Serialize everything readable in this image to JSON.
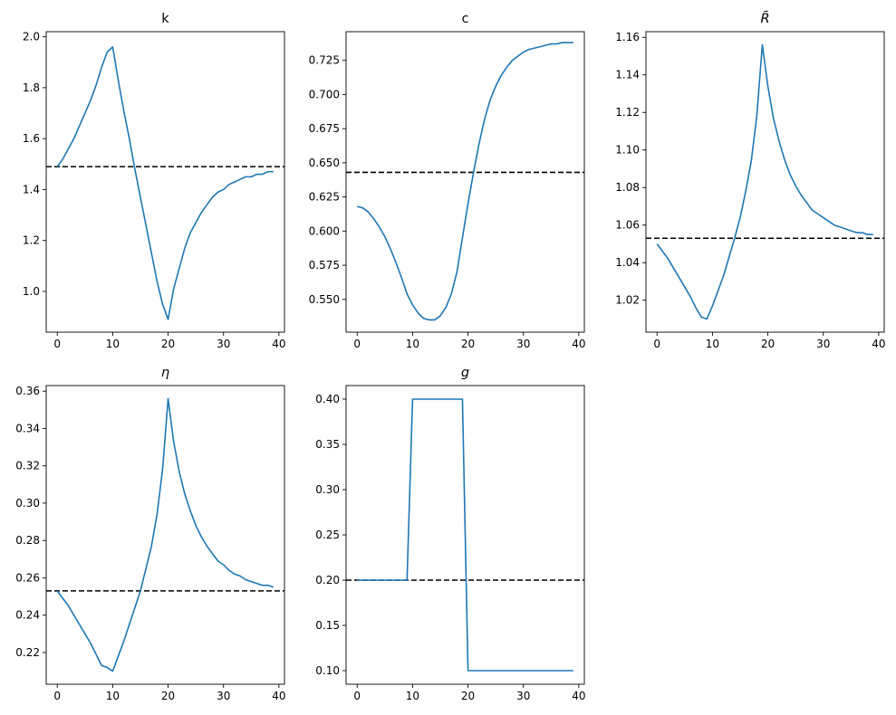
{
  "colors": {
    "series": "#1f77b4",
    "steady_state": "#000000",
    "axes": "#000000",
    "background": "#ffffff"
  },
  "chart_data": [
    {
      "type": "line",
      "title": "k",
      "xlim": [
        -2,
        41
      ],
      "ylim": [
        0.84,
        2.02
      ],
      "xticks": [
        0,
        10,
        20,
        30,
        40
      ],
      "yticks": [
        1.0,
        1.2,
        1.4,
        1.6,
        1.8,
        2.0
      ],
      "xtick_labels": [
        "0",
        "10",
        "20",
        "30",
        "40"
      ],
      "ytick_labels": [
        "1.0",
        "1.2",
        "1.4",
        "1.6",
        "1.8",
        "2.0"
      ],
      "steady_state": 1.49,
      "x": [
        0,
        1,
        2,
        3,
        4,
        5,
        6,
        7,
        8,
        9,
        10,
        11,
        12,
        13,
        14,
        15,
        16,
        17,
        18,
        19,
        20,
        21,
        22,
        23,
        24,
        25,
        26,
        27,
        28,
        29,
        30,
        31,
        32,
        33,
        34,
        35,
        36,
        37,
        38,
        39
      ],
      "values": [
        1.49,
        1.52,
        1.56,
        1.6,
        1.65,
        1.7,
        1.75,
        1.81,
        1.88,
        1.94,
        1.96,
        1.83,
        1.71,
        1.6,
        1.48,
        1.37,
        1.26,
        1.15,
        1.04,
        0.95,
        0.89,
        1.01,
        1.09,
        1.17,
        1.23,
        1.27,
        1.31,
        1.34,
        1.37,
        1.39,
        1.4,
        1.42,
        1.43,
        1.44,
        1.45,
        1.45,
        1.46,
        1.46,
        1.47,
        1.47
      ]
    },
    {
      "type": "line",
      "title": "c",
      "xlim": [
        -2,
        41
      ],
      "ylim": [
        0.526,
        0.746
      ],
      "xticks": [
        0,
        10,
        20,
        30,
        40
      ],
      "yticks": [
        0.55,
        0.575,
        0.6,
        0.625,
        0.65,
        0.675,
        0.7,
        0.725
      ],
      "xtick_labels": [
        "0",
        "10",
        "20",
        "30",
        "40"
      ],
      "ytick_labels": [
        "0.550",
        "0.575",
        "0.600",
        "0.625",
        "0.650",
        "0.675",
        "0.700",
        "0.725"
      ],
      "steady_state": 0.643,
      "x": [
        0,
        1,
        2,
        3,
        4,
        5,
        6,
        7,
        8,
        9,
        10,
        11,
        12,
        13,
        14,
        15,
        16,
        17,
        18,
        19,
        20,
        21,
        22,
        23,
        24,
        25,
        26,
        27,
        28,
        29,
        30,
        31,
        32,
        33,
        34,
        35,
        36,
        37,
        38,
        39
      ],
      "values": [
        0.618,
        0.617,
        0.614,
        0.609,
        0.603,
        0.596,
        0.587,
        0.577,
        0.566,
        0.554,
        0.546,
        0.54,
        0.536,
        0.535,
        0.535,
        0.538,
        0.544,
        0.554,
        0.57,
        0.595,
        0.62,
        0.643,
        0.664,
        0.682,
        0.696,
        0.706,
        0.714,
        0.72,
        0.725,
        0.728,
        0.731,
        0.733,
        0.734,
        0.735,
        0.736,
        0.737,
        0.737,
        0.738,
        0.738,
        0.738
      ]
    },
    {
      "type": "line",
      "title": "R̄",
      "xlim": [
        -2,
        41
      ],
      "ylim": [
        1.003,
        1.163
      ],
      "xticks": [
        0,
        10,
        20,
        30,
        40
      ],
      "yticks": [
        1.02,
        1.04,
        1.06,
        1.08,
        1.1,
        1.12,
        1.14,
        1.16
      ],
      "xtick_labels": [
        "0",
        "10",
        "20",
        "30",
        "40"
      ],
      "ytick_labels": [
        "1.02",
        "1.04",
        "1.06",
        "1.08",
        "1.10",
        "1.12",
        "1.14",
        "1.16"
      ],
      "steady_state": 1.053,
      "x": [
        0,
        1,
        2,
        3,
        4,
        5,
        6,
        7,
        8,
        9,
        10,
        11,
        12,
        13,
        14,
        15,
        16,
        17,
        18,
        19,
        20,
        21,
        22,
        23,
        24,
        25,
        26,
        27,
        28,
        29,
        30,
        31,
        32,
        33,
        34,
        35,
        36,
        37,
        38,
        39
      ],
      "values": [
        1.05,
        1.046,
        1.042,
        1.037,
        1.032,
        1.027,
        1.022,
        1.016,
        1.011,
        1.01,
        1.017,
        1.025,
        1.033,
        1.043,
        1.053,
        1.064,
        1.078,
        1.094,
        1.118,
        1.156,
        1.134,
        1.117,
        1.105,
        1.095,
        1.087,
        1.081,
        1.076,
        1.072,
        1.068,
        1.066,
        1.064,
        1.062,
        1.06,
        1.059,
        1.058,
        1.057,
        1.056,
        1.056,
        1.055,
        1.055
      ]
    },
    {
      "type": "line",
      "title": "η",
      "xlim": [
        -2,
        41
      ],
      "ylim": [
        0.203,
        0.363
      ],
      "xticks": [
        0,
        10,
        20,
        30,
        40
      ],
      "yticks": [
        0.22,
        0.24,
        0.26,
        0.28,
        0.3,
        0.32,
        0.34,
        0.36
      ],
      "xtick_labels": [
        "0",
        "10",
        "20",
        "30",
        "40"
      ],
      "ytick_labels": [
        "0.22",
        "0.24",
        "0.26",
        "0.28",
        "0.30",
        "0.32",
        "0.34",
        "0.36"
      ],
      "steady_state": 0.253,
      "x": [
        0,
        1,
        2,
        3,
        4,
        5,
        6,
        7,
        8,
        9,
        10,
        11,
        12,
        13,
        14,
        15,
        16,
        17,
        18,
        19,
        20,
        21,
        22,
        23,
        24,
        25,
        26,
        27,
        28,
        29,
        30,
        31,
        32,
        33,
        34,
        35,
        36,
        37,
        38,
        39
      ],
      "values": [
        0.253,
        0.249,
        0.245,
        0.24,
        0.235,
        0.23,
        0.225,
        0.219,
        0.213,
        0.212,
        0.21,
        0.218,
        0.226,
        0.235,
        0.244,
        0.253,
        0.265,
        0.277,
        0.294,
        0.318,
        0.356,
        0.333,
        0.317,
        0.305,
        0.296,
        0.288,
        0.282,
        0.277,
        0.273,
        0.269,
        0.267,
        0.264,
        0.262,
        0.261,
        0.259,
        0.258,
        0.257,
        0.256,
        0.256,
        0.255
      ]
    },
    {
      "type": "line",
      "title": "g",
      "xlim": [
        -2,
        41
      ],
      "ylim": [
        0.085,
        0.415
      ],
      "xticks": [
        0,
        10,
        20,
        30,
        40
      ],
      "yticks": [
        0.1,
        0.15,
        0.2,
        0.25,
        0.3,
        0.35,
        0.4
      ],
      "xtick_labels": [
        "0",
        "10",
        "20",
        "30",
        "40"
      ],
      "ytick_labels": [
        "0.10",
        "0.15",
        "0.20",
        "0.25",
        "0.30",
        "0.35",
        "0.40"
      ],
      "steady_state": 0.2,
      "x": [
        0,
        1,
        2,
        3,
        4,
        5,
        6,
        7,
        8,
        9,
        10,
        11,
        12,
        13,
        14,
        15,
        16,
        17,
        18,
        19,
        20,
        21,
        22,
        23,
        24,
        25,
        26,
        27,
        28,
        29,
        30,
        31,
        32,
        33,
        34,
        35,
        36,
        37,
        38,
        39
      ],
      "values": [
        0.2,
        0.2,
        0.2,
        0.2,
        0.2,
        0.2,
        0.2,
        0.2,
        0.2,
        0.2,
        0.4,
        0.4,
        0.4,
        0.4,
        0.4,
        0.4,
        0.4,
        0.4,
        0.4,
        0.4,
        0.1,
        0.1,
        0.1,
        0.1,
        0.1,
        0.1,
        0.1,
        0.1,
        0.1,
        0.1,
        0.1,
        0.1,
        0.1,
        0.1,
        0.1,
        0.1,
        0.1,
        0.1,
        0.1,
        0.1
      ]
    }
  ]
}
